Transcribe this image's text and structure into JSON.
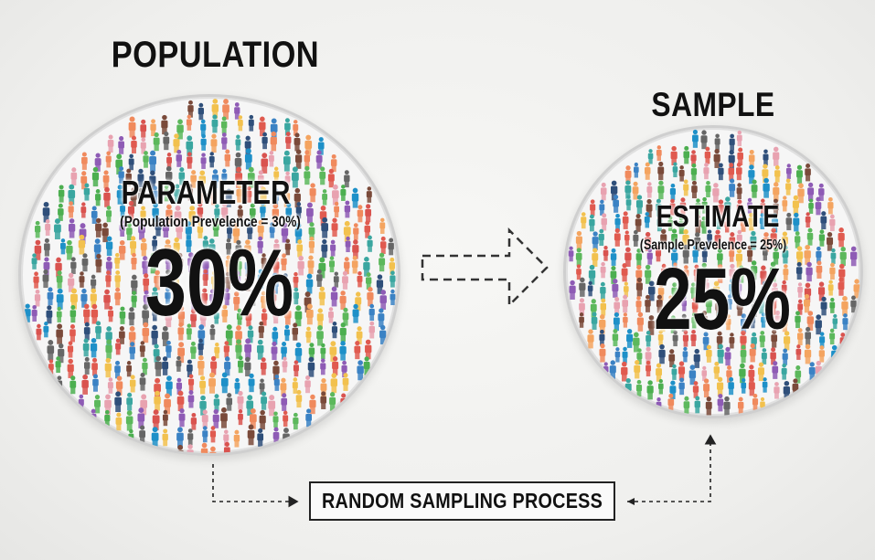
{
  "population": {
    "title": "POPULATION",
    "heading": "PARAMETER",
    "subtitle": "(Population Prevelence = 30%)",
    "value": "30%"
  },
  "sample": {
    "title": "SAMPLE",
    "heading": "ESTIMATE",
    "subtitle": "(Sample Prevelence = 25%)",
    "value": "25%"
  },
  "process": {
    "label": "RANDOM SAMPLING PROCESS"
  },
  "colors": {
    "people": [
      "#e05a4f",
      "#f08a5d",
      "#f2c14e",
      "#5cb85c",
      "#3aa6a0",
      "#3b82c4",
      "#2f4f7a",
      "#8e5bb5",
      "#d9534f",
      "#e8a2b0",
      "#7a4a3a",
      "#4caf50",
      "#1e90c8",
      "#f4a460",
      "#666666"
    ]
  }
}
